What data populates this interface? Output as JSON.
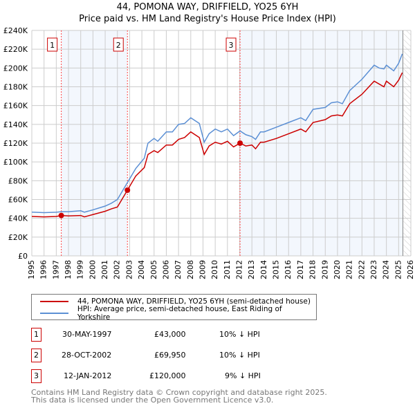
{
  "title": "44, POMONA WAY, DRIFFIELD, YO25 6YH",
  "subtitle": "Price paid vs. HM Land Registry's House Price Index (HPI)",
  "chart_data": {
    "type": "line",
    "xlim": [
      1995,
      2026
    ],
    "ylim": [
      0,
      240000
    ],
    "xticks": [
      "1995",
      "1996",
      "1997",
      "1998",
      "1999",
      "2000",
      "2001",
      "2002",
      "2003",
      "2004",
      "2005",
      "2006",
      "2007",
      "2008",
      "2009",
      "2010",
      "2011",
      "2012",
      "2013",
      "2014",
      "2015",
      "2016",
      "2017",
      "2018",
      "2019",
      "2020",
      "2021",
      "2022",
      "2023",
      "2024",
      "2025",
      "2026"
    ],
    "yticks": [
      "£0",
      "£20K",
      "£40K",
      "£60K",
      "£80K",
      "£100K",
      "£120K",
      "£140K",
      "£160K",
      "£180K",
      "£200K",
      "£220K",
      "£240K"
    ],
    "grid": true,
    "series": [
      {
        "name": "44, POMONA WAY, DRIFFIELD, YO25 6YH (semi-detached house)",
        "color": "#cc0000",
        "x": [
          1995,
          1996,
          1997,
          1997.41,
          1998,
          1999,
          1999.3,
          2000,
          2001,
          2001.5,
          2002,
          2002.82,
          2003.5,
          2004.2,
          2004.5,
          2005,
          2005.3,
          2006,
          2006.5,
          2007,
          2007.5,
          2008,
          2008.7,
          2009.1,
          2009.5,
          2010,
          2010.5,
          2011,
          2011.5,
          2012.03,
          2012.5,
          2013,
          2013.3,
          2013.7,
          2014,
          2015,
          2016,
          2017,
          2017.4,
          2018,
          2019,
          2019.5,
          2020,
          2020.4,
          2021,
          2022,
          2023,
          2023.4,
          2023.8,
          2024,
          2024.6,
          2025,
          2025.3
        ],
        "y": [
          42000,
          41500,
          42000,
          43000,
          42500,
          43000,
          41500,
          44000,
          47500,
          50000,
          52000,
          69950,
          85000,
          94000,
          108000,
          112000,
          110000,
          118000,
          118000,
          124000,
          126000,
          132000,
          126000,
          108000,
          117000,
          121000,
          119000,
          122000,
          116000,
          120000,
          117000,
          118000,
          114000,
          121000,
          121000,
          125000,
          130000,
          135000,
          132000,
          142000,
          145000,
          149000,
          150000,
          149000,
          162000,
          172000,
          186000,
          183000,
          180000,
          186000,
          180000,
          187000,
          195000
        ]
      },
      {
        "name": "HPI: Average price, semi-detached house, East Riding of Yorkshire",
        "color": "#5b8fd4",
        "x": [
          1995,
          1996,
          1997,
          1997.41,
          1998,
          1999,
          1999.3,
          2000,
          2001,
          2001.5,
          2002,
          2002.82,
          2003.5,
          2004.2,
          2004.5,
          2005,
          2005.3,
          2006,
          2006.5,
          2007,
          2007.5,
          2008,
          2008.7,
          2009.1,
          2009.5,
          2010,
          2010.5,
          2011,
          2011.5,
          2012.03,
          2012.5,
          2013,
          2013.3,
          2013.7,
          2014,
          2015,
          2016,
          2017,
          2017.4,
          2018,
          2019,
          2019.5,
          2020,
          2020.4,
          2021,
          2022,
          2023,
          2023.4,
          2023.8,
          2024,
          2024.6,
          2025,
          2025.3
        ],
        "y": [
          46600,
          46000,
          46500,
          47000,
          47000,
          48000,
          46500,
          49000,
          53000,
          56000,
          60000,
          78000,
          93000,
          104000,
          120000,
          125000,
          122000,
          132000,
          132000,
          140000,
          141000,
          147000,
          141000,
          121000,
          130000,
          135000,
          132000,
          135000,
          128000,
          133000,
          129000,
          127000,
          124000,
          132000,
          132000,
          137000,
          142000,
          147000,
          144000,
          156000,
          158000,
          163000,
          164000,
          162000,
          176000,
          188000,
          203000,
          200000,
          199000,
          203000,
          197000,
          205000,
          215000
        ]
      }
    ],
    "sales": [
      {
        "label": "1",
        "x": 1997.41,
        "y": 43000
      },
      {
        "label": "2",
        "x": 2002.82,
        "y": 69950
      },
      {
        "label": "3",
        "x": 2012.03,
        "y": 120000
      }
    ],
    "shaded": [
      [
        1997.41,
        2002.82
      ],
      [
        2012.03,
        2025.35
      ]
    ],
    "hatched_from": 2025.4
  },
  "legend": {
    "red": "44, POMONA WAY, DRIFFIELD, YO25 6YH (semi-detached house)",
    "blue": "HPI: Average price, semi-detached house, East Riding of Yorkshire"
  },
  "table": [
    {
      "n": "1",
      "date": "30-MAY-1997",
      "price": "£43,000",
      "hpi": "10% ↓ HPI"
    },
    {
      "n": "2",
      "date": "28-OCT-2002",
      "price": "£69,950",
      "hpi": "10% ↓ HPI"
    },
    {
      "n": "3",
      "date": "12-JAN-2012",
      "price": "£120,000",
      "hpi": "9% ↓ HPI"
    }
  ],
  "footer": [
    "Contains HM Land Registry data © Crown copyright and database right 2025.",
    "This data is licensed under the Open Government Licence v3.0."
  ]
}
